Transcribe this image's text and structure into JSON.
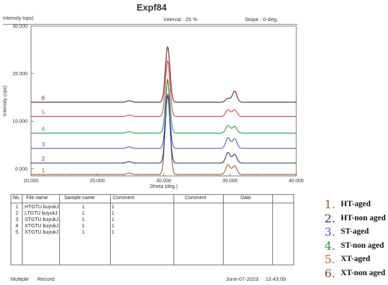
{
  "header": {
    "title": "Expf84",
    "corner_label": "Intensity tops)",
    "interval": "Interval    :    25  %",
    "stope": "Stope  :  0-deg."
  },
  "chart_data": {
    "type": "line",
    "title": "Expf84",
    "xlabel": "2theta (deg.)",
    "ylabel": "Intensity (cps)",
    "xlim": [
      20,
      40
    ],
    "ylim": [
      -1.5,
      30
    ],
    "x_ticks": [
      "20.000",
      "25.000",
      "30.000",
      "35.000",
      "40.000"
    ],
    "y_ticks": [
      {
        "label": "0.000",
        "value": 0
      },
      {
        "label": "10.000",
        "value": 10
      },
      {
        "label": "20.000",
        "value": 20
      },
      {
        "label": "30.000",
        "value": 30
      }
    ],
    "peaks": [
      {
        "x": 27.4,
        "note": "weak"
      },
      {
        "x": 30.3,
        "note": "strong"
      },
      {
        "x": 34.85,
        "note": "medium"
      },
      {
        "x": 35.35,
        "note": "medium"
      }
    ],
    "series": [
      {
        "label": "1",
        "color": "#a0522d",
        "baseline": -1.2,
        "peak": 20.0,
        "p1": 2.0,
        "p2": 1.8,
        "small": 0.3
      },
      {
        "label": "2",
        "color": "#2b2b7a",
        "baseline": 1.2,
        "peak": 14.0,
        "p1": 2.2,
        "p2": 1.8,
        "small": 0.3
      },
      {
        "label": "3",
        "color": "#4a5ac8",
        "baseline": 4.3,
        "peak": 11.3,
        "p1": 2.2,
        "p2": 2.0,
        "small": 0.3
      },
      {
        "label": "4",
        "color": "#1e9e3e",
        "baseline": 7.5,
        "peak": 10.8,
        "p1": 1.6,
        "p2": 1.4,
        "small": 0.3
      },
      {
        "label": "5",
        "color": "#e43a3a",
        "baseline": 11.0,
        "peak": 11.7,
        "p1": 1.4,
        "p2": 1.4,
        "small": 0.3
      },
      {
        "label": "6",
        "color": "#6b1a1a",
        "baseline": 14.0,
        "peak": 11.6,
        "p1": 0.8,
        "p2": 2.3,
        "small": 0.3
      }
    ]
  },
  "table": {
    "columns": [
      "No.",
      "File name",
      "Sample name",
      "Comment",
      "Comment",
      "Date"
    ],
    "rows": [
      {
        "no": "1",
        "file": "HTGTU buyukJ",
        "sample": "1",
        "comment": "1"
      },
      {
        "no": "2",
        "file": "LTGTU buyukJ",
        "sample": "1",
        "comment": "1"
      },
      {
        "no": "3",
        "file": "STGTU buyukJ",
        "sample": "1",
        "comment": "1"
      },
      {
        "no": "4",
        "file": "XTGTU buyukJ",
        "sample": "1",
        "comment": "1"
      },
      {
        "no": "5",
        "file": "XTGTU buyukJ",
        "sample": "1",
        "comment": "1"
      }
    ]
  },
  "footer": {
    "multiple": "Multiple",
    "record": "Record",
    "date": "June-07-2023",
    "time": "13:43:09"
  },
  "legend": [
    {
      "num": "1.",
      "text": "HT-aged",
      "color": "#a0522d"
    },
    {
      "num": "2.",
      "text": "HT-non aged",
      "color": "#2b2b7a"
    },
    {
      "num": "3.",
      "text": "ST-aged",
      "color": "#4a5ac8"
    },
    {
      "num": "4.",
      "text": "ST-non aged",
      "color": "#1e9e3e"
    },
    {
      "num": "5.",
      "text": "XT-aged",
      "color": "#c0601a"
    },
    {
      "num": "6.",
      "text": "XT-non aged",
      "color": "#7a4a3a"
    }
  ]
}
